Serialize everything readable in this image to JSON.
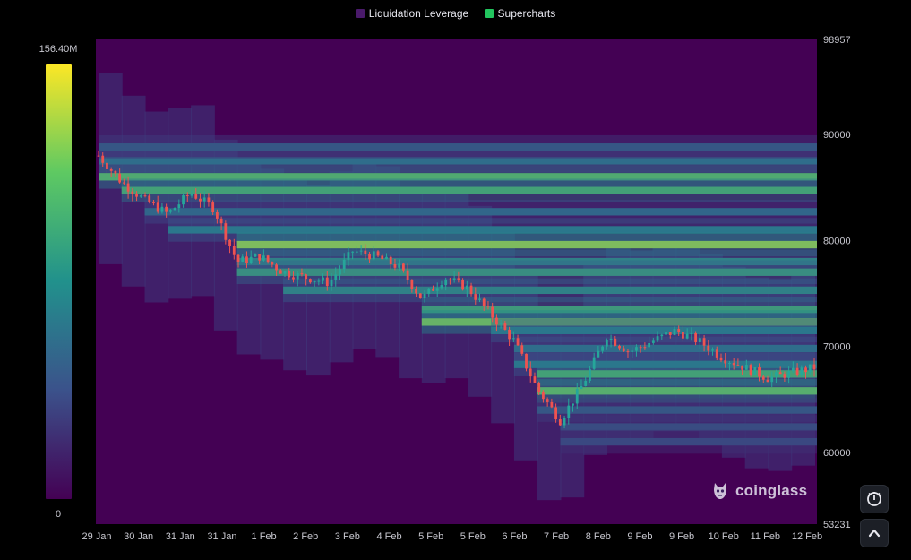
{
  "legend": {
    "items": [
      {
        "label": "Liquidation Leverage",
        "color": "#4a1a6b"
      },
      {
        "label": "Supercharts",
        "color": "#22c55e"
      }
    ]
  },
  "colorbar": {
    "max_label": "156.40M",
    "min_label": "0",
    "stops": [
      "#440154",
      "#3b528b",
      "#21918c",
      "#5ec962",
      "#fde725"
    ]
  },
  "watermark": {
    "text": "coinglass",
    "icon": "coinglass-logo-icon"
  },
  "buttons": {
    "screenshot": "camera-icon",
    "top": "chevron-up-icon"
  },
  "chart_data": {
    "type": "heatmap",
    "title": "",
    "xlabel": "",
    "ylabel": "",
    "x_ticks": [
      "29 Jan",
      "30 Jan",
      "31 Jan",
      "31 Jan",
      "1 Feb",
      "2 Feb",
      "3 Feb",
      "4 Feb",
      "5 Feb",
      "5 Feb",
      "6 Feb",
      "7 Feb",
      "8 Feb",
      "9 Feb",
      "9 Feb",
      "10 Feb",
      "11 Feb",
      "12 Feb"
    ],
    "y_ticks": [
      98957,
      90000,
      80000,
      70000,
      60000,
      53231
    ],
    "ylim": [
      53231,
      98957
    ],
    "grid": false,
    "legend_position": "top-center",
    "overlay_series": {
      "name": "Supercharts",
      "type": "candlestick",
      "x_range": [
        "29 Jan",
        "12 Feb"
      ],
      "price_path": [
        88000,
        85500,
        83800,
        82500,
        84500,
        83000,
        78000,
        78500,
        77000,
        76500,
        76000,
        79000,
        78500,
        77500,
        74500,
        76500,
        75500,
        73000,
        70500,
        66000,
        63000,
        66500,
        71000,
        69500,
        70500,
        71500,
        70500,
        69000,
        68000,
        67000,
        67500,
        68000
      ]
    },
    "bands": [
      {
        "price": 86000,
        "intensity": 0.78
      },
      {
        "price": 84700,
        "intensity": 0.72
      },
      {
        "price": 87500,
        "intensity": 0.45
      },
      {
        "price": 88800,
        "intensity": 0.35
      },
      {
        "price": 82700,
        "intensity": 0.42
      },
      {
        "price": 81000,
        "intensity": 0.5
      },
      {
        "price": 79600,
        "intensity": 0.92
      },
      {
        "price": 78000,
        "intensity": 0.55
      },
      {
        "price": 77000,
        "intensity": 0.62
      },
      {
        "price": 75300,
        "intensity": 0.55
      },
      {
        "price": 73500,
        "intensity": 0.68
      },
      {
        "price": 72300,
        "intensity": 0.85
      },
      {
        "price": 71500,
        "intensity": 0.5
      },
      {
        "price": 69800,
        "intensity": 0.45
      },
      {
        "price": 68300,
        "intensity": 0.5
      },
      {
        "price": 67400,
        "intensity": 0.72
      },
      {
        "price": 65800,
        "intensity": 0.8
      },
      {
        "price": 64000,
        "intensity": 0.35
      },
      {
        "price": 62400,
        "intensity": 0.3
      },
      {
        "price": 61000,
        "intensity": 0.28
      }
    ]
  }
}
